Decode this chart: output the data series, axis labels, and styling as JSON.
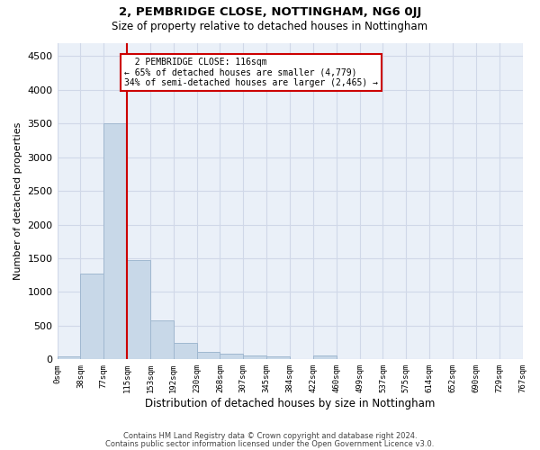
{
  "title1": "2, PEMBRIDGE CLOSE, NOTTINGHAM, NG6 0JJ",
  "title2": "Size of property relative to detached houses in Nottingham",
  "xlabel": "Distribution of detached houses by size in Nottingham",
  "ylabel": "Number of detached properties",
  "footer1": "Contains HM Land Registry data © Crown copyright and database right 2024.",
  "footer2": "Contains public sector information licensed under the Open Government Licence v3.0.",
  "bin_labels": [
    "0sqm",
    "38sqm",
    "77sqm",
    "115sqm",
    "153sqm",
    "192sqm",
    "230sqm",
    "268sqm",
    "307sqm",
    "345sqm",
    "384sqm",
    "422sqm",
    "460sqm",
    "499sqm",
    "537sqm",
    "575sqm",
    "614sqm",
    "652sqm",
    "690sqm",
    "729sqm",
    "767sqm"
  ],
  "bar_values": [
    40,
    1280,
    3500,
    1470,
    580,
    240,
    110,
    80,
    55,
    40,
    0,
    55,
    0,
    0,
    0,
    0,
    0,
    0,
    0,
    0
  ],
  "bar_color": "#c8d8e8",
  "bar_edge_color": "#a0b8d0",
  "grid_color": "#d0d8e8",
  "bg_color": "#eaf0f8",
  "annotation_box_color": "#cc0000",
  "property_label": "2 PEMBRIDGE CLOSE: 116sqm",
  "pct_smaller": 65,
  "count_smaller": 4779,
  "pct_larger_semi": 34,
  "count_larger_semi": 2465,
  "red_line_bin": 3,
  "bin_width": 38,
  "ylim": [
    0,
    4700
  ],
  "yticks": [
    0,
    500,
    1000,
    1500,
    2000,
    2500,
    3000,
    3500,
    4000,
    4500
  ]
}
